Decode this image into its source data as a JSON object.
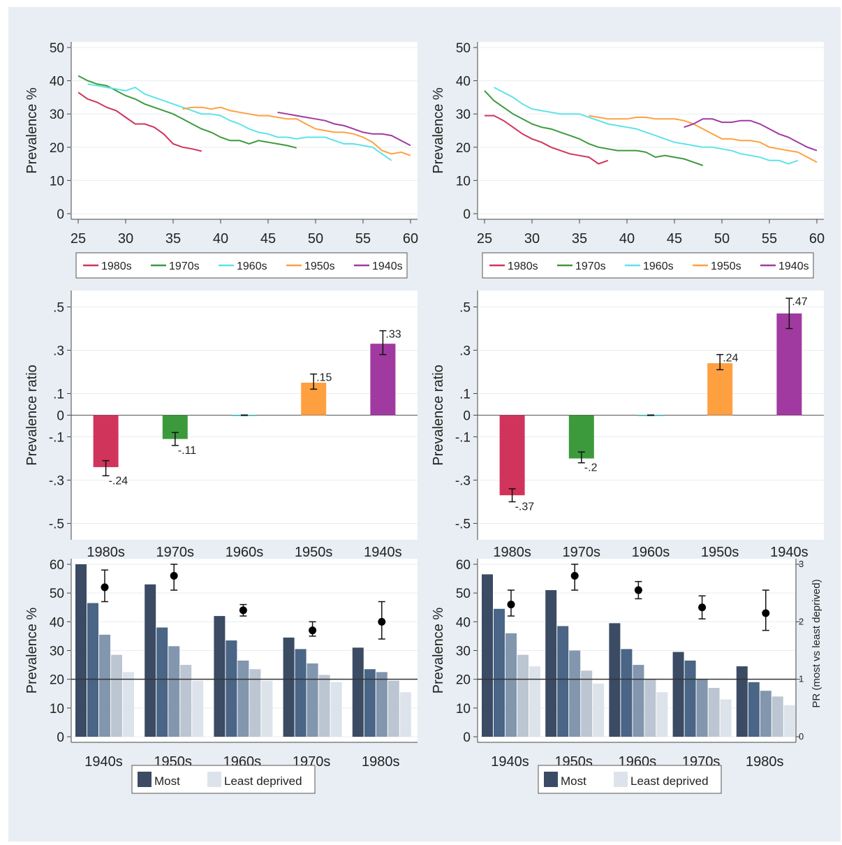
{
  "heading": "",
  "colors": {
    "1980s": "#d1345b",
    "1970s": "#3c9a3c",
    "1960s": "#5ee3e8",
    "1950s": "#ffa040",
    "1940s": "#a03aa0",
    "deprivation": [
      "#3b4b64",
      "#4a6585",
      "#8296ae",
      "#bcc6d2",
      "#dde3ea"
    ],
    "pr_marker": "#000000"
  },
  "chart_data": [
    {
      "id": "line-left",
      "type": "line",
      "ylabel": "Prevalence %",
      "xlim": [
        25,
        60
      ],
      "ylim": [
        0,
        50
      ],
      "xticks": [
        25,
        30,
        35,
        40,
        45,
        50,
        55,
        60
      ],
      "yticks": [
        0,
        10,
        20,
        30,
        40,
        50
      ],
      "legend": [
        "1980s",
        "1970s",
        "1960s",
        "1950s",
        "1940s"
      ],
      "series": [
        {
          "name": "1980s",
          "x": [
            25,
            26,
            27,
            28,
            29,
            30,
            31,
            32,
            33,
            34,
            35,
            36,
            37,
            38
          ],
          "y": [
            36.5,
            34.5,
            33.5,
            32,
            31,
            29,
            27,
            27,
            26,
            24,
            21,
            20,
            19.5,
            18.8
          ]
        },
        {
          "name": "1970s",
          "x": [
            25,
            26,
            27,
            28,
            29,
            30,
            31,
            32,
            33,
            34,
            35,
            36,
            37,
            38,
            39,
            40,
            41,
            42,
            43,
            44,
            45,
            46,
            47,
            48
          ],
          "y": [
            41.5,
            40,
            39,
            38.5,
            37,
            35.5,
            34.5,
            33,
            32,
            31,
            30,
            28.5,
            27,
            25.5,
            24.5,
            23,
            22,
            22,
            21,
            22,
            21.5,
            21,
            20.5,
            19.8
          ]
        },
        {
          "name": "1960s",
          "x": [
            26,
            27,
            28,
            29,
            30,
            31,
            32,
            33,
            34,
            35,
            36,
            37,
            38,
            39,
            40,
            41,
            42,
            43,
            44,
            45,
            46,
            47,
            48,
            49,
            50,
            51,
            52,
            53,
            54,
            55,
            56,
            57,
            58
          ],
          "y": [
            39,
            38.5,
            38,
            37.5,
            37,
            38,
            36,
            35,
            34,
            33,
            32,
            31,
            30,
            30,
            29.5,
            28,
            27,
            25.5,
            24.5,
            24,
            23,
            23,
            22.5,
            23,
            23,
            23,
            22,
            21,
            21,
            20.5,
            20,
            18,
            16
          ]
        },
        {
          "name": "1950s",
          "x": [
            36,
            37,
            38,
            39,
            40,
            41,
            42,
            43,
            44,
            45,
            46,
            47,
            48,
            49,
            50,
            51,
            52,
            53,
            54,
            55,
            56,
            57,
            58,
            59,
            60
          ],
          "y": [
            31.5,
            32,
            32,
            31.5,
            32,
            31,
            30.5,
            30,
            29.5,
            29.5,
            29,
            28.5,
            28.5,
            27,
            25.5,
            25,
            24.5,
            24.5,
            24,
            23,
            21.5,
            19,
            18,
            18.5,
            17.5
          ]
        },
        {
          "name": "1940s",
          "x": [
            46,
            47,
            48,
            49,
            50,
            51,
            52,
            53,
            54,
            55,
            56,
            57,
            58,
            59,
            60
          ],
          "y": [
            30.5,
            30,
            29.5,
            29,
            28.5,
            28,
            27,
            26.5,
            25.5,
            24.5,
            24,
            24,
            23.5,
            22,
            20.5
          ]
        }
      ]
    },
    {
      "id": "line-right",
      "type": "line",
      "ylabel": "Prevalence %",
      "xlim": [
        25,
        60
      ],
      "ylim": [
        0,
        50
      ],
      "xticks": [
        25,
        30,
        35,
        40,
        45,
        50,
        55,
        60
      ],
      "yticks": [
        0,
        10,
        20,
        30,
        40,
        50
      ],
      "legend": [
        "1980s",
        "1970s",
        "1960s",
        "1950s",
        "1940s"
      ],
      "series": [
        {
          "name": "1980s",
          "x": [
            25,
            26,
            27,
            28,
            29,
            30,
            31,
            32,
            33,
            34,
            35,
            36,
            37,
            38
          ],
          "y": [
            29.5,
            29.5,
            28,
            26,
            24,
            22.5,
            21.5,
            20,
            19,
            18,
            17.5,
            17,
            15,
            16
          ]
        },
        {
          "name": "1970s",
          "x": [
            25,
            26,
            27,
            28,
            29,
            30,
            31,
            32,
            33,
            34,
            35,
            36,
            37,
            38,
            39,
            40,
            41,
            42,
            43,
            44,
            45,
            46,
            47,
            48
          ],
          "y": [
            37,
            34,
            32,
            30,
            28.5,
            27,
            26,
            25.5,
            24.5,
            23.5,
            22.5,
            21,
            20,
            19.5,
            19,
            19,
            19,
            18.5,
            17,
            17.5,
            17,
            16.5,
            15.5,
            14.5
          ]
        },
        {
          "name": "1960s",
          "x": [
            26,
            27,
            28,
            29,
            30,
            31,
            32,
            33,
            34,
            35,
            36,
            37,
            38,
            39,
            40,
            41,
            42,
            43,
            44,
            45,
            46,
            47,
            48,
            49,
            50,
            51,
            52,
            53,
            54,
            55,
            56,
            57,
            58
          ],
          "y": [
            38,
            36.5,
            35,
            33,
            31.5,
            31,
            30.5,
            30,
            30,
            30,
            29,
            28,
            27,
            26.5,
            26,
            25.5,
            24.5,
            23.5,
            22.5,
            21.5,
            21,
            20.5,
            20,
            20,
            19.5,
            19,
            18,
            17.5,
            17,
            16,
            16,
            15,
            16
          ]
        },
        {
          "name": "1950s",
          "x": [
            36,
            37,
            38,
            39,
            40,
            41,
            42,
            43,
            44,
            45,
            46,
            47,
            48,
            49,
            50,
            51,
            52,
            53,
            54,
            55,
            56,
            57,
            58,
            59,
            60
          ],
          "y": [
            29.5,
            29,
            28.5,
            28.5,
            28.5,
            29,
            29,
            28.5,
            28.5,
            28.5,
            28,
            27,
            25.5,
            24,
            22.5,
            22.5,
            22,
            22,
            21.5,
            20,
            19.5,
            19,
            18.5,
            17,
            15.5
          ]
        },
        {
          "name": "1940s",
          "x": [
            46,
            47,
            48,
            49,
            50,
            51,
            52,
            53,
            54,
            55,
            56,
            57,
            58,
            59,
            60
          ],
          "y": [
            26,
            27,
            28.5,
            28.5,
            27.5,
            27.5,
            28,
            28,
            27,
            25.5,
            24,
            23,
            21.5,
            20,
            19
          ]
        }
      ]
    },
    {
      "id": "bar-left",
      "type": "bar",
      "ylabel": "Prevalence ratio",
      "ylim": [
        -0.55,
        0.55
      ],
      "yticks": [
        -0.5,
        -0.3,
        -0.1,
        0,
        0.1,
        0.3,
        0.5
      ],
      "ytick_labels": [
        "-.5",
        "-.3",
        "-.1",
        "0",
        ".1",
        ".3",
        ".5"
      ],
      "categories": [
        "1980s",
        "1970s",
        "1960s",
        "1950s",
        "1940s"
      ],
      "values": [
        -0.24,
        -0.11,
        0,
        0.15,
        0.33
      ],
      "ci_low": [
        -0.28,
        -0.14,
        0,
        0.12,
        0.28
      ],
      "ci_high": [
        -0.21,
        -0.08,
        0,
        0.19,
        0.39
      ],
      "labels": [
        "-.24",
        "-.11",
        "",
        ".15",
        ".33"
      ]
    },
    {
      "id": "bar-right",
      "type": "bar",
      "ylabel": "Prevalence ratio",
      "ylim": [
        -0.55,
        0.55
      ],
      "yticks": [
        -0.5,
        -0.3,
        -0.1,
        0,
        0.1,
        0.3,
        0.5
      ],
      "ytick_labels": [
        "-.5",
        "-.3",
        "-.1",
        "0",
        ".1",
        ".3",
        ".5"
      ],
      "categories": [
        "1980s",
        "1970s",
        "1960s",
        "1950s",
        "1940s"
      ],
      "values": [
        -0.37,
        -0.2,
        0,
        0.24,
        0.47
      ],
      "ci_low": [
        -0.4,
        -0.22,
        0,
        0.21,
        0.4
      ],
      "ci_high": [
        -0.34,
        -0.17,
        0,
        0.28,
        0.54
      ],
      "labels": [
        "-.37",
        "-.2",
        "",
        ".24",
        ".47"
      ]
    },
    {
      "id": "group-left",
      "type": "bar",
      "ylabel": "Prevalence %",
      "ylim": [
        0,
        60
      ],
      "yticks": [
        0,
        10,
        20,
        30,
        40,
        50,
        60
      ],
      "categories": [
        "1940s",
        "1950s",
        "1960s",
        "1970s",
        "1980s"
      ],
      "legend": [
        "Most",
        "Least deprived"
      ],
      "reference_line": 20,
      "series": [
        {
          "values": [
            60,
            53,
            42,
            34.5,
            31
          ]
        },
        {
          "values": [
            46.5,
            38,
            33.5,
            30.5,
            23.5
          ]
        },
        {
          "values": [
            35.5,
            31.5,
            26.5,
            25.5,
            22.5
          ]
        },
        {
          "values": [
            28.5,
            25,
            23.5,
            21.5,
            19.5
          ]
        },
        {
          "values": [
            22.5,
            19.5,
            19.5,
            19,
            15.5
          ]
        }
      ],
      "pr_scale_ylim": [
        0,
        3
      ],
      "pr": [
        2.6,
        2.8,
        2.2,
        1.85,
        2.0
      ],
      "pr_ci_low": [
        2.35,
        2.55,
        2.1,
        1.75,
        1.7
      ],
      "pr_ci_high": [
        2.9,
        3.0,
        2.3,
        2.0,
        2.35
      ]
    },
    {
      "id": "group-right",
      "type": "bar",
      "ylabel": "Prevalence %",
      "ylim": [
        0,
        60
      ],
      "yticks": [
        0,
        10,
        20,
        30,
        40,
        50,
        60
      ],
      "categories": [
        "1940s",
        "1950s",
        "1960s",
        "1970s",
        "1980s"
      ],
      "legend": [
        "Most",
        "Least deprived"
      ],
      "reference_line": 20,
      "y2label": "PR (most vs least deprived)",
      "y2ticks": [
        0,
        1,
        2,
        3
      ],
      "pr_scale_ylim": [
        0,
        3
      ],
      "series": [
        {
          "values": [
            56.5,
            51,
            39.5,
            29.5,
            24.5
          ]
        },
        {
          "values": [
            44.5,
            38.5,
            30.5,
            26.5,
            19
          ]
        },
        {
          "values": [
            36,
            30,
            25,
            20,
            16
          ]
        },
        {
          "values": [
            28.5,
            23,
            20,
            17,
            14
          ]
        },
        {
          "values": [
            24.5,
            18.5,
            15.5,
            13,
            11
          ]
        }
      ],
      "pr": [
        2.3,
        2.8,
        2.55,
        2.25,
        2.15
      ],
      "pr_ci_low": [
        2.1,
        2.55,
        2.4,
        2.05,
        1.85
      ],
      "pr_ci_high": [
        2.55,
        3.0,
        2.7,
        2.45,
        2.55
      ]
    }
  ]
}
